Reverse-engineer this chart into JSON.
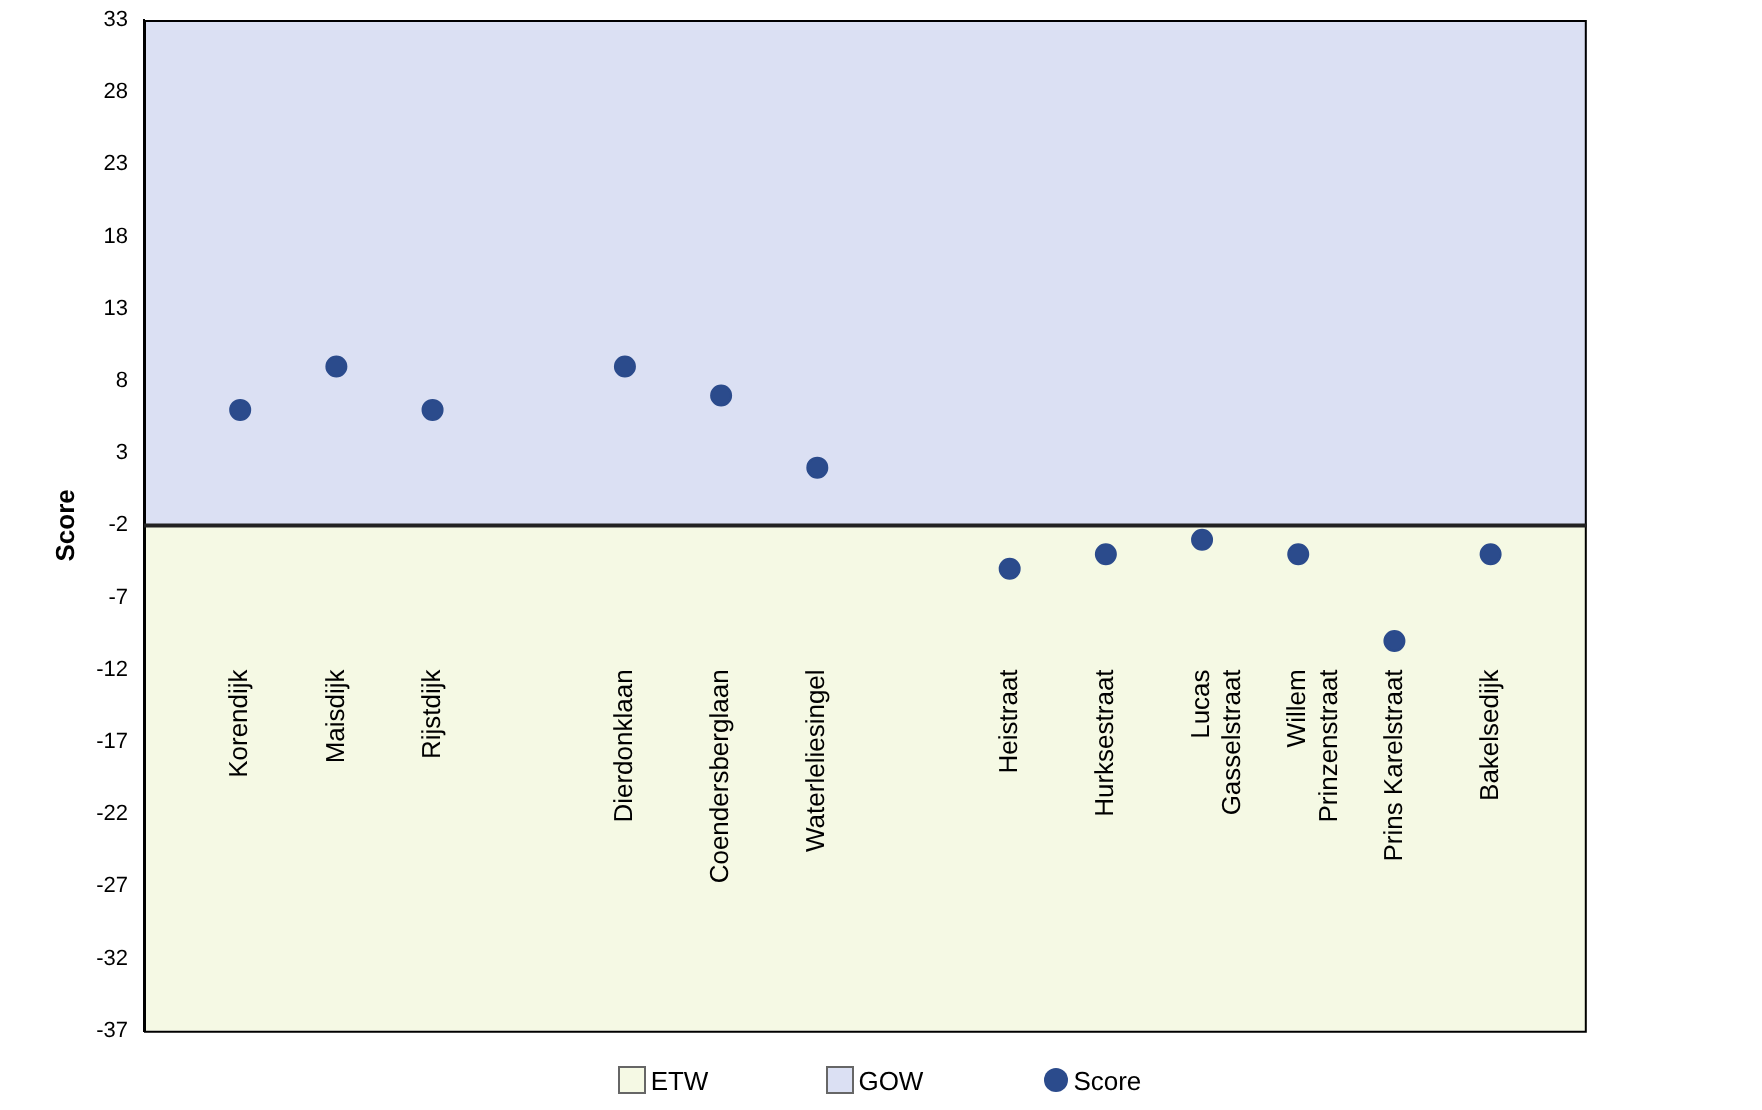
{
  "chart_data": {
    "type": "scatter",
    "ylabel": "Score",
    "categories": [
      null,
      "Korendijk",
      "Maisdijk",
      "Rijstdijk",
      null,
      "Dierdonklaan",
      "Coendersberglaan",
      "Waterleliesingel",
      null,
      "Heistraat",
      "Hurksestraat",
      "Lucas Gasselstraat",
      "Willem Prinzenstraat",
      "Prins Karelstraat",
      "Bakelsedijk",
      null
    ],
    "series": [
      {
        "name": "Score",
        "color": "#2b4b8c",
        "values": [
          null,
          6,
          9,
          6,
          null,
          9,
          7,
          2,
          null,
          -5,
          -4,
          -3,
          -4,
          -10,
          -4,
          null
        ]
      }
    ],
    "ylim": [
      -37,
      33
    ],
    "yticks": [
      -37,
      -32,
      -27,
      -22,
      -17,
      -12,
      -7,
      -2,
      3,
      8,
      13,
      18,
      23,
      28,
      33
    ],
    "bands": [
      {
        "axis": "y",
        "from": -37,
        "to": -2,
        "label": "ETW",
        "color": "#f5f9e4"
      },
      {
        "axis": "y",
        "from": -2,
        "to": 33,
        "label": "GOW",
        "color": "#dbe0f3"
      }
    ],
    "ref_lines": [
      {
        "axis": "y",
        "value": -2
      }
    ],
    "grid": false,
    "legend": "bottom",
    "marker": "circle"
  }
}
